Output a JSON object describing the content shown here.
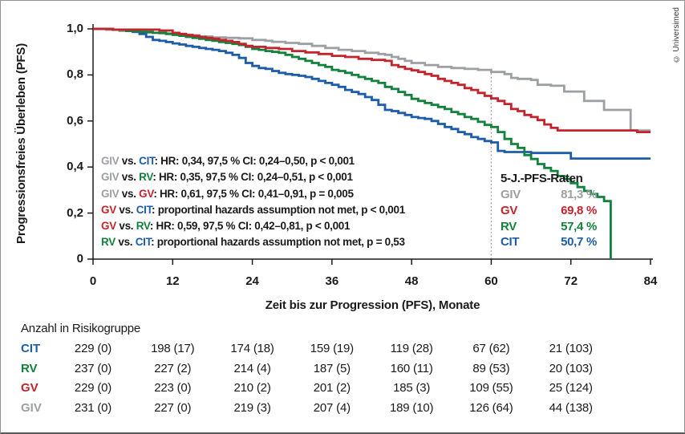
{
  "copyright": "© Universimed",
  "colors": {
    "GIV": "#9d9fa2",
    "GV": "#c5232b",
    "RV": "#12813c",
    "CIT": "#1d5ca8",
    "axis": "#1a1a1a",
    "dotted": "#8f8f8f"
  },
  "chart_data": {
    "type": "line",
    "subtype": "kaplan-meier-step",
    "title": "",
    "xlabel": "Zeit bis zur Progression (PFS), Monate",
    "ylabel": "Progressionsfreies Überleben (PFS)",
    "xlim": [
      0,
      84
    ],
    "ylim": [
      0,
      1.0
    ],
    "xticks": [
      0,
      12,
      24,
      36,
      48,
      60,
      72,
      84
    ],
    "yticks": [
      0,
      0.2,
      0.4,
      0.6,
      0.8,
      1.0
    ],
    "ytick_labels": [
      "0",
      "0,2",
      "0,4",
      "0,6",
      "0,8",
      "1,0"
    ],
    "grid": false,
    "reference_line": {
      "x": 60,
      "top_value": 0.826,
      "style": "dotted"
    },
    "series": [
      {
        "name": "GIV",
        "color_key": "GIV",
        "points": [
          [
            0,
            1.0
          ],
          [
            2,
            0.996
          ],
          [
            4,
            0.991
          ],
          [
            6,
            0.987
          ],
          [
            8,
            0.983
          ],
          [
            10,
            0.98
          ],
          [
            12,
            0.976
          ],
          [
            14,
            0.972
          ],
          [
            16,
            0.967
          ],
          [
            18,
            0.963
          ],
          [
            20,
            0.961
          ],
          [
            22,
            0.959
          ],
          [
            24,
            0.952
          ],
          [
            26,
            0.948
          ],
          [
            27,
            0.944
          ],
          [
            29,
            0.939
          ],
          [
            31,
            0.935
          ],
          [
            33,
            0.926
          ],
          [
            35,
            0.917
          ],
          [
            37,
            0.909
          ],
          [
            39,
            0.904
          ],
          [
            41,
            0.896
          ],
          [
            43,
            0.891
          ],
          [
            44,
            0.887
          ],
          [
            45,
            0.878
          ],
          [
            46,
            0.87
          ],
          [
            47,
            0.861
          ],
          [
            48,
            0.852
          ],
          [
            50,
            0.843
          ],
          [
            52,
            0.835
          ],
          [
            54,
            0.83
          ],
          [
            56,
            0.826
          ],
          [
            58,
            0.822
          ],
          [
            60,
            0.813
          ],
          [
            62,
            0.804
          ],
          [
            63,
            0.787
          ],
          [
            64,
            0.783
          ],
          [
            66,
            0.778
          ],
          [
            67,
            0.757
          ],
          [
            69,
            0.753
          ],
          [
            71,
            0.728
          ],
          [
            74,
            0.687
          ],
          [
            77,
            0.648
          ],
          [
            81,
            0.559
          ],
          [
            84,
            0.559
          ]
        ]
      },
      {
        "name": "CIT",
        "color_key": "CIT",
        "points": [
          [
            0,
            1.0
          ],
          [
            3,
            0.996
          ],
          [
            5,
            0.991
          ],
          [
            6,
            0.987
          ],
          [
            7,
            0.978
          ],
          [
            8,
            0.965
          ],
          [
            9,
            0.952
          ],
          [
            10,
            0.948
          ],
          [
            11,
            0.943
          ],
          [
            12,
            0.937
          ],
          [
            13,
            0.932
          ],
          [
            14,
            0.926
          ],
          [
            15,
            0.922
          ],
          [
            16,
            0.917
          ],
          [
            17,
            0.913
          ],
          [
            18,
            0.909
          ],
          [
            19,
            0.904
          ],
          [
            20,
            0.896
          ],
          [
            21,
            0.887
          ],
          [
            22,
            0.874
          ],
          [
            23,
            0.852
          ],
          [
            24,
            0.839
          ],
          [
            25,
            0.83
          ],
          [
            26,
            0.826
          ],
          [
            27,
            0.817
          ],
          [
            28,
            0.809
          ],
          [
            29,
            0.804
          ],
          [
            30,
            0.8
          ],
          [
            31,
            0.796
          ],
          [
            32,
            0.791
          ],
          [
            33,
            0.783
          ],
          [
            34,
            0.774
          ],
          [
            35,
            0.765
          ],
          [
            36,
            0.757
          ],
          [
            37,
            0.748
          ],
          [
            38,
            0.735
          ],
          [
            39,
            0.726
          ],
          [
            40,
            0.717
          ],
          [
            41,
            0.704
          ],
          [
            42,
            0.691
          ],
          [
            43,
            0.67
          ],
          [
            44,
            0.648
          ],
          [
            45,
            0.643
          ],
          [
            46,
            0.635
          ],
          [
            47,
            0.626
          ],
          [
            48,
            0.617
          ],
          [
            49,
            0.613
          ],
          [
            50,
            0.609
          ],
          [
            51,
            0.6
          ],
          [
            52,
            0.587
          ],
          [
            53,
            0.574
          ],
          [
            54,
            0.565
          ],
          [
            55,
            0.552
          ],
          [
            56,
            0.543
          ],
          [
            57,
            0.53
          ],
          [
            58,
            0.522
          ],
          [
            59,
            0.513
          ],
          [
            60,
            0.507
          ],
          [
            61,
            0.47
          ],
          [
            62,
            0.465
          ],
          [
            66,
            0.461
          ],
          [
            72,
            0.437
          ],
          [
            84,
            0.437
          ]
        ]
      },
      {
        "name": "RV",
        "color_key": "RV",
        "points": [
          [
            0,
            1.0
          ],
          [
            3,
            0.996
          ],
          [
            5,
            0.991
          ],
          [
            7,
            0.987
          ],
          [
            9,
            0.983
          ],
          [
            11,
            0.978
          ],
          [
            12,
            0.974
          ],
          [
            13,
            0.97
          ],
          [
            14,
            0.965
          ],
          [
            15,
            0.961
          ],
          [
            16,
            0.957
          ],
          [
            17,
            0.952
          ],
          [
            18,
            0.948
          ],
          [
            19,
            0.943
          ],
          [
            20,
            0.939
          ],
          [
            21,
            0.935
          ],
          [
            22,
            0.93
          ],
          [
            23,
            0.922
          ],
          [
            24,
            0.913
          ],
          [
            25,
            0.909
          ],
          [
            26,
            0.904
          ],
          [
            27,
            0.9
          ],
          [
            28,
            0.896
          ],
          [
            29,
            0.887
          ],
          [
            30,
            0.878
          ],
          [
            31,
            0.87
          ],
          [
            32,
            0.861
          ],
          [
            33,
            0.852
          ],
          [
            34,
            0.843
          ],
          [
            35,
            0.835
          ],
          [
            36,
            0.822
          ],
          [
            37,
            0.817
          ],
          [
            38,
            0.809
          ],
          [
            39,
            0.8
          ],
          [
            40,
            0.791
          ],
          [
            41,
            0.783
          ],
          [
            42,
            0.774
          ],
          [
            43,
            0.765
          ],
          [
            44,
            0.748
          ],
          [
            45,
            0.739
          ],
          [
            46,
            0.726
          ],
          [
            47,
            0.713
          ],
          [
            48,
            0.696
          ],
          [
            49,
            0.687
          ],
          [
            50,
            0.678
          ],
          [
            51,
            0.67
          ],
          [
            52,
            0.661
          ],
          [
            53,
            0.652
          ],
          [
            54,
            0.639
          ],
          [
            55,
            0.63
          ],
          [
            56,
            0.617
          ],
          [
            57,
            0.609
          ],
          [
            58,
            0.596
          ],
          [
            59,
            0.583
          ],
          [
            60,
            0.574
          ],
          [
            61,
            0.552
          ],
          [
            62,
            0.522
          ],
          [
            63,
            0.5
          ],
          [
            64,
            0.483
          ],
          [
            65,
            0.452
          ],
          [
            66,
            0.435
          ],
          [
            67,
            0.413
          ],
          [
            68,
            0.396
          ],
          [
            69,
            0.383
          ],
          [
            70,
            0.361
          ],
          [
            71,
            0.348
          ],
          [
            72,
            0.33
          ],
          [
            73,
            0.313
          ],
          [
            74,
            0.296
          ],
          [
            75,
            0.283
          ],
          [
            76,
            0.27
          ],
          [
            77,
            0.252
          ],
          [
            78,
            0.0
          ]
        ]
      },
      {
        "name": "GV",
        "color_key": "GV",
        "points": [
          [
            0,
            1.0
          ],
          [
            3,
            0.997
          ],
          [
            10,
            0.993
          ],
          [
            12,
            0.983
          ],
          [
            13,
            0.978
          ],
          [
            14,
            0.974
          ],
          [
            15,
            0.97
          ],
          [
            16,
            0.965
          ],
          [
            17,
            0.961
          ],
          [
            18,
            0.957
          ],
          [
            19,
            0.952
          ],
          [
            20,
            0.948
          ],
          [
            21,
            0.943
          ],
          [
            22,
            0.935
          ],
          [
            23,
            0.926
          ],
          [
            24,
            0.922
          ],
          [
            26,
            0.917
          ],
          [
            28,
            0.913
          ],
          [
            30,
            0.904
          ],
          [
            32,
            0.898
          ],
          [
            34,
            0.891
          ],
          [
            36,
            0.883
          ],
          [
            38,
            0.878
          ],
          [
            40,
            0.87
          ],
          [
            42,
            0.865
          ],
          [
            44,
            0.861
          ],
          [
            45,
            0.843
          ],
          [
            46,
            0.835
          ],
          [
            47,
            0.826
          ],
          [
            48,
            0.82
          ],
          [
            49,
            0.813
          ],
          [
            50,
            0.804
          ],
          [
            51,
            0.796
          ],
          [
            52,
            0.783
          ],
          [
            53,
            0.774
          ],
          [
            54,
            0.765
          ],
          [
            55,
            0.757
          ],
          [
            56,
            0.743
          ],
          [
            57,
            0.735
          ],
          [
            58,
            0.722
          ],
          [
            59,
            0.709
          ],
          [
            60,
            0.698
          ],
          [
            61,
            0.687
          ],
          [
            62,
            0.674
          ],
          [
            63,
            0.652
          ],
          [
            64,
            0.643
          ],
          [
            65,
            0.626
          ],
          [
            66,
            0.617
          ],
          [
            67,
            0.604
          ],
          [
            68,
            0.585
          ],
          [
            69,
            0.57
          ],
          [
            70,
            0.559
          ],
          [
            82,
            0.552
          ],
          [
            84,
            0.552
          ]
        ]
      }
    ]
  },
  "stats_lines": [
    {
      "parts": [
        {
          "text": "GIV",
          "color": "GIV"
        },
        {
          "text": " vs. "
        },
        {
          "text": "CIT",
          "color": "CIT"
        },
        {
          "text": ": HR: 0,34, 97,5 % CI: 0,24–0,50, p < 0,001"
        }
      ]
    },
    {
      "parts": [
        {
          "text": "GIV",
          "color": "GIV"
        },
        {
          "text": " vs. "
        },
        {
          "text": "RV",
          "color": "RV"
        },
        {
          "text": ": HR: 0,35, 97,5 % CI: 0,24–0,51, p < 0,001"
        }
      ]
    },
    {
      "parts": [
        {
          "text": "GIV",
          "color": "GIV"
        },
        {
          "text": " vs. "
        },
        {
          "text": "GV",
          "color": "GV"
        },
        {
          "text": ": HR: 0,61, 97,5 % CI: 0,41–0,91, p = 0,005"
        }
      ]
    },
    {
      "parts": [
        {
          "text": "GV",
          "color": "GV"
        },
        {
          "text": " vs. "
        },
        {
          "text": "CIT",
          "color": "CIT"
        },
        {
          "text": ": proportinal hazards assumption not met, p < 0,001"
        }
      ]
    },
    {
      "parts": [
        {
          "text": "GV",
          "color": "GV"
        },
        {
          "text": " vs. "
        },
        {
          "text": "RV",
          "color": "RV"
        },
        {
          "text": ": HR: 0,59, 97,5 % CI: 0,42–0,81, p < 0,001"
        }
      ]
    },
    {
      "parts": [
        {
          "text": "RV",
          "color": "RV"
        },
        {
          "text": " vs. "
        },
        {
          "text": "CIT",
          "color": "CIT"
        },
        {
          "text": ": proportional hazards assumption not met, p = 0,53"
        }
      ]
    }
  ],
  "rates_box": {
    "title": "5-J.-PFS-Raten",
    "rows": [
      {
        "group": "GIV",
        "value": "81,3 %"
      },
      {
        "group": "GV",
        "value": "69,8 %"
      },
      {
        "group": "RV",
        "value": "57,4 %"
      },
      {
        "group": "CIT",
        "value": "50,7 %"
      }
    ]
  },
  "risk_table": {
    "title": "Anzahl in Risikogruppe",
    "columns_months": [
      0,
      12,
      24,
      36,
      48,
      60,
      72
    ],
    "rows": [
      {
        "group": "CIT",
        "values": [
          "229 (0)",
          "198 (17)",
          "174 (18)",
          "159 (19)",
          "119 (28)",
          "67 (62)",
          "21 (103)"
        ]
      },
      {
        "group": "RV",
        "values": [
          "237 (0)",
          "227 (2)",
          "214 (4)",
          "187 (5)",
          "160 (11)",
          "89 (53)",
          "20 (103)"
        ]
      },
      {
        "group": "GV",
        "values": [
          "229 (0)",
          "223 (0)",
          "210 (2)",
          "201 (2)",
          "185 (3)",
          "109 (55)",
          "25 (124)"
        ]
      },
      {
        "group": "GIV",
        "values": [
          "231 (0)",
          "227 (0)",
          "219 (3)",
          "207 (4)",
          "189 (10)",
          "126 (64)",
          "44 (138)"
        ]
      }
    ]
  }
}
